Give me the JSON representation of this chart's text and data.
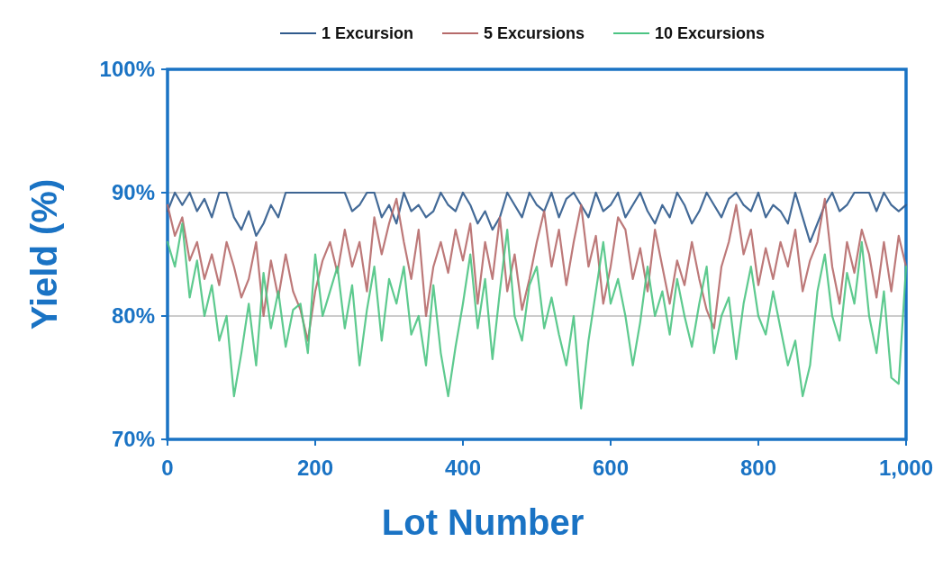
{
  "chart_data": {
    "type": "line",
    "xlabel": "Lot Number",
    "ylabel": "Yield (%)",
    "legend": "top",
    "grid": "y",
    "line_style": "solid",
    "marker": "none",
    "xlim": [
      0,
      1000
    ],
    "xticks": [
      0,
      200,
      400,
      600,
      800,
      {
        "value": 1000,
        "label": "1,000"
      }
    ],
    "ylim": [
      70,
      100
    ],
    "yticks": [
      {
        "value": 70,
        "label": "70%"
      },
      {
        "value": 80,
        "label": "80%"
      },
      {
        "value": 90,
        "label": "90%"
      },
      {
        "value": 100,
        "label": "100%"
      }
    ],
    "x": [
      0,
      10,
      20,
      30,
      40,
      50,
      60,
      70,
      80,
      90,
      100,
      110,
      120,
      130,
      140,
      150,
      160,
      170,
      180,
      190,
      200,
      210,
      220,
      230,
      240,
      250,
      260,
      270,
      280,
      290,
      300,
      310,
      320,
      330,
      340,
      350,
      360,
      370,
      380,
      390,
      400,
      410,
      420,
      430,
      440,
      450,
      460,
      470,
      480,
      490,
      500,
      510,
      520,
      530,
      540,
      550,
      560,
      570,
      580,
      590,
      600,
      610,
      620,
      630,
      640,
      650,
      660,
      670,
      680,
      690,
      700,
      710,
      720,
      730,
      740,
      750,
      760,
      770,
      780,
      790,
      800,
      810,
      820,
      830,
      840,
      850,
      860,
      870,
      880,
      890,
      900,
      910,
      920,
      930,
      940,
      950,
      960,
      970,
      980,
      990,
      1000
    ],
    "series": [
      {
        "name": "1 Excursion",
        "color": "#2f5a8c",
        "values": [
          88.5,
          90,
          89,
          90,
          88.5,
          89.5,
          88,
          90,
          90,
          88,
          87,
          88.5,
          86.5,
          87.5,
          89,
          88,
          90,
          90,
          90,
          90,
          90,
          90,
          90,
          90,
          90,
          88.5,
          89,
          90,
          90,
          88,
          89,
          87.5,
          90,
          88.5,
          89,
          88,
          88.5,
          90,
          89,
          88.5,
          90,
          89,
          87.5,
          88.5,
          87,
          88,
          90,
          89,
          88,
          90,
          89,
          88.5,
          90,
          88,
          89.5,
          90,
          89,
          88,
          90,
          88.5,
          89,
          90,
          88,
          89,
          90,
          88.5,
          87.5,
          89,
          88,
          90,
          89,
          87.5,
          88.5,
          90,
          89,
          88,
          89.5,
          90,
          89,
          88.5,
          90,
          88,
          89,
          88.5,
          87.5,
          90,
          88,
          86,
          87.5,
          89,
          90,
          88.5,
          89,
          90,
          90,
          90,
          88.5,
          90,
          89,
          88.5,
          89
        ]
      },
      {
        "name": "5 Excursions",
        "color": "#b66a6a",
        "values": [
          89,
          86.5,
          88,
          84.5,
          86,
          83,
          85,
          82.5,
          86,
          84,
          81.5,
          83,
          86,
          80,
          84.5,
          81.5,
          85,
          82,
          80.5,
          78,
          82,
          84.5,
          86,
          83.5,
          87,
          84,
          86,
          82,
          88,
          85,
          87.5,
          89.5,
          86,
          83,
          87,
          80,
          84,
          86,
          83.5,
          87,
          84.5,
          87.5,
          81,
          86,
          83,
          88,
          82,
          85,
          80.5,
          83,
          86,
          88.5,
          84,
          87,
          82.5,
          86,
          89,
          84,
          86.5,
          81,
          84,
          88,
          87,
          83,
          85.5,
          82,
          87,
          84,
          81,
          84.5,
          82.5,
          86,
          83,
          80.5,
          79,
          84,
          86,
          89,
          85,
          87,
          82.5,
          85.5,
          83,
          86,
          84,
          87,
          82,
          84.5,
          86,
          89.5,
          84,
          81,
          86,
          83.5,
          87,
          85,
          81.5,
          86,
          82,
          86.5,
          84
        ]
      },
      {
        "name": "10 Excursions",
        "color": "#4cc483",
        "values": [
          86,
          84,
          87.5,
          81.5,
          84.5,
          80,
          82.5,
          78,
          80,
          73.5,
          77,
          81,
          76,
          83.5,
          79,
          82,
          77.5,
          80.5,
          81,
          77,
          85,
          80,
          82,
          84,
          79,
          82.5,
          76,
          80.5,
          84,
          78,
          83,
          81,
          84,
          78.5,
          80,
          76,
          82.5,
          77,
          73.5,
          77.5,
          81,
          85,
          79,
          83,
          76.5,
          82,
          87,
          80,
          78,
          82.5,
          84,
          79,
          81.5,
          78.5,
          76,
          80,
          72.5,
          78,
          82,
          86,
          81,
          83,
          80,
          76,
          79.5,
          84,
          80,
          82,
          78.5,
          83,
          80,
          77.5,
          81,
          84,
          77,
          80,
          81.5,
          76.5,
          81,
          84,
          80,
          78.5,
          82,
          79,
          76,
          78,
          73.5,
          76,
          82,
          85,
          80,
          78,
          83.5,
          81,
          86,
          80,
          77,
          82,
          75,
          74.5,
          84
        ]
      }
    ]
  }
}
